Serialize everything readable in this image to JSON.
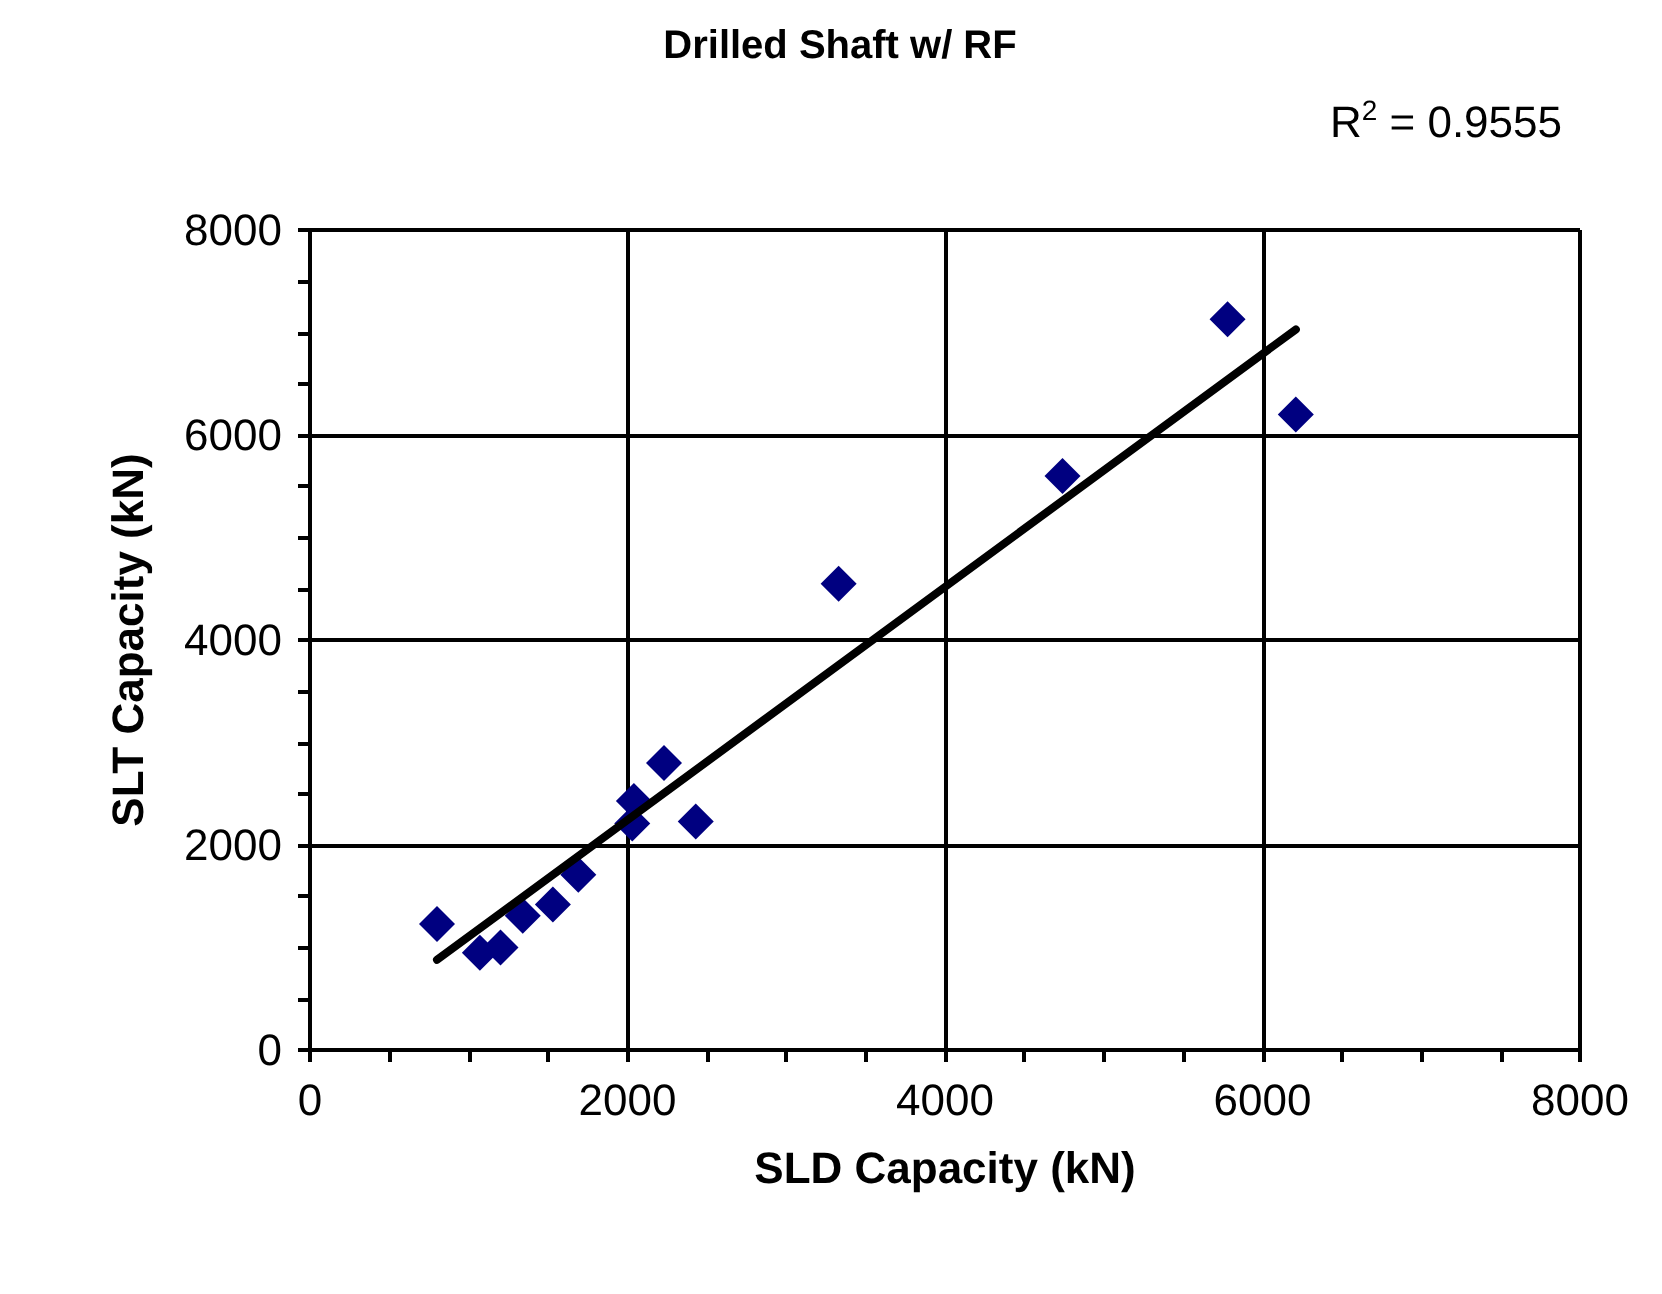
{
  "chart_data": {
    "type": "scatter",
    "title": "Drilled Shaft w/ RF",
    "xlabel": "SLD Capacity (kN)",
    "ylabel": "SLT Capacity (kN)",
    "annotations": [
      "R$^{2}$ = 0.9555"
    ],
    "series": [
      {
        "color": "#000080",
        "marker": "diamond",
        "x": [
          800,
          1070,
          1200,
          1340,
          1530,
          1690,
          2030,
          2040,
          2230,
          2430,
          3330,
          4740,
          5780,
          6210
        ],
        "values": [
          1230,
          950,
          1000,
          1310,
          1420,
          1710,
          2210,
          2430,
          2800,
          2230,
          4550,
          5600,
          7130,
          6200
        ]
      },
      {
        "type": "line",
        "color": "#000000",
        "x": [
          800,
          6210
        ],
        "values": [
          880,
          7030
        ]
      }
    ],
    "xlim": [
      0,
      8000
    ],
    "xticks": [
      0,
      2000,
      4000,
      6000,
      8000
    ],
    "ylim": [
      0,
      8000
    ],
    "yticks": [
      0,
      2000,
      4000,
      6000,
      8000
    ],
    "grid": true
  }
}
